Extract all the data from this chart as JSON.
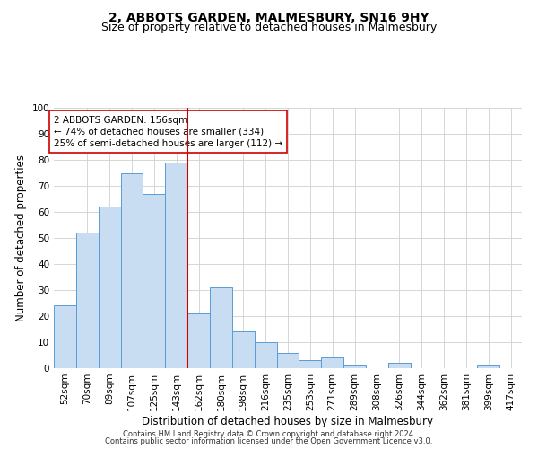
{
  "title": "2, ABBOTS GARDEN, MALMESBURY, SN16 9HY",
  "subtitle": "Size of property relative to detached houses in Malmesbury",
  "xlabel": "Distribution of detached houses by size in Malmesbury",
  "ylabel": "Number of detached properties",
  "categories": [
    "52sqm",
    "70sqm",
    "89sqm",
    "107sqm",
    "125sqm",
    "143sqm",
    "162sqm",
    "180sqm",
    "198sqm",
    "216sqm",
    "235sqm",
    "253sqm",
    "271sqm",
    "289sqm",
    "308sqm",
    "326sqm",
    "344sqm",
    "362sqm",
    "381sqm",
    "399sqm",
    "417sqm"
  ],
  "values": [
    24,
    52,
    62,
    75,
    67,
    79,
    21,
    31,
    14,
    10,
    6,
    3,
    4,
    1,
    0,
    2,
    0,
    0,
    0,
    1,
    0
  ],
  "bar_color": "#c9ddf2",
  "bar_edge_color": "#5b9bd5",
  "vline_color": "#cc0000",
  "annotation_line1": "2 ABBOTS GARDEN: 156sqm",
  "annotation_line2": "← 74% of detached houses are smaller (334)",
  "annotation_line3": "25% of semi-detached houses are larger (112) →",
  "annotation_box_color": "#ffffff",
  "annotation_box_edge_color": "#cc0000",
  "ylim": [
    0,
    100
  ],
  "yticks": [
    0,
    10,
    20,
    30,
    40,
    50,
    60,
    70,
    80,
    90,
    100
  ],
  "footer1": "Contains HM Land Registry data © Crown copyright and database right 2024.",
  "footer2": "Contains public sector information licensed under the Open Government Licence v3.0.",
  "bg_color": "#ffffff",
  "grid_color": "#d0d0d0",
  "title_fontsize": 10,
  "subtitle_fontsize": 9,
  "tick_fontsize": 7.5,
  "ylabel_fontsize": 8.5,
  "xlabel_fontsize": 8.5,
  "annotation_fontsize": 7.5,
  "footer_fontsize": 6
}
